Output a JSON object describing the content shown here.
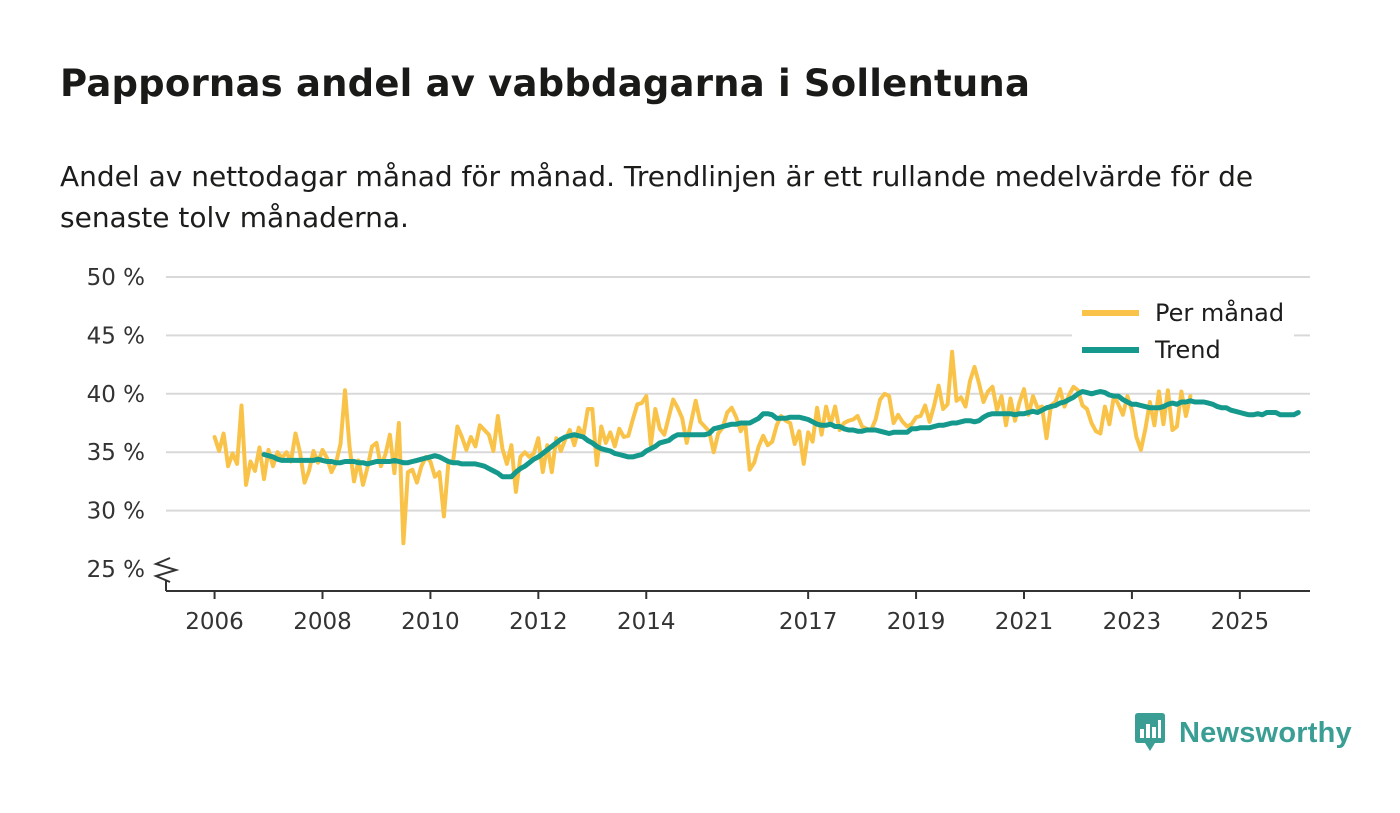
{
  "title": "Pappornas andel av vabbdagarna i Sollentuna",
  "subtitle": "Andel av nettodagar månad för månad. Trendlinjen är ett rullande medelvärde för de senaste tolv månaderna.",
  "brand": {
    "name": "Newsworthy",
    "logo_icon": "bar-chart-speech-bubble-icon"
  },
  "colors": {
    "monthly": "#f9c34a",
    "trend": "#14998c",
    "grid": "#d9d9d9",
    "axis": "#333333"
  },
  "chart_data": {
    "type": "line",
    "title": "Pappornas andel av vabbdagarna i Sollentuna",
    "xlabel": "",
    "ylabel": "",
    "ylim": [
      25,
      50
    ],
    "y_ticks": [
      25,
      30,
      35,
      40,
      45,
      50
    ],
    "y_tick_labels": [
      "25 %",
      "30 %",
      "35 %",
      "40 %",
      "45 %",
      "50 %"
    ],
    "x_ticks": [
      2006,
      2008,
      2010,
      2012,
      2014,
      2017,
      2019,
      2021,
      2023,
      2025
    ],
    "x_tick_labels": [
      "2006",
      "2008",
      "2010",
      "2012",
      "2014",
      "2017",
      "2019",
      "2021",
      "2023",
      "2025"
    ],
    "x_range": [
      2005.1,
      2026.3
    ],
    "grid": true,
    "axis_break": true,
    "legend_position": "top-right",
    "series": [
      {
        "name": "Per månad",
        "key": "monthly",
        "x_start": 2006.0,
        "x_step": 0.0833333,
        "values": [
          36.3,
          35.1,
          36.6,
          33.8,
          34.9,
          34.0,
          39.0,
          32.2,
          34.2,
          33.4,
          35.4,
          32.7,
          35.2,
          33.8,
          35.0,
          34.5,
          35.0,
          34.2,
          36.6,
          35.0,
          32.4,
          33.4,
          35.1,
          34.1,
          35.2,
          34.5,
          33.3,
          34.1,
          35.7,
          40.3,
          35.5,
          32.5,
          34.3,
          32.2,
          33.7,
          35.5,
          35.8,
          33.8,
          34.8,
          36.5,
          33.2,
          37.5,
          27.2,
          33.3,
          33.5,
          32.4,
          33.8,
          34.6,
          34.2,
          32.9,
          33.3,
          29.5,
          34.1,
          34.1,
          37.2,
          36.3,
          35.2,
          36.3,
          35.5,
          37.3,
          36.9,
          36.5,
          35.1,
          38.1,
          35.3,
          34.0,
          35.6,
          31.6,
          34.6,
          35.0,
          34.6,
          34.9,
          36.2,
          33.3,
          35.6,
          33.3,
          36.2,
          35.1,
          36.1,
          36.9,
          35.6,
          37.1,
          36.4,
          38.7,
          38.7,
          33.9,
          37.2,
          35.8,
          36.7,
          35.5,
          37.0,
          36.3,
          36.4,
          37.8,
          39.1,
          39.2,
          39.8,
          35.6,
          38.7,
          37.0,
          36.5,
          38.0,
          39.5,
          38.8,
          37.9,
          35.8,
          37.6,
          39.4,
          37.6,
          37.2,
          36.8,
          35.0,
          36.6,
          37.1,
          38.4,
          38.8,
          38.0,
          36.8,
          37.5,
          33.5,
          34.1,
          35.5,
          36.4,
          35.6,
          35.9,
          37.3,
          38.1,
          37.7,
          37.5,
          35.7,
          36.8,
          34.0,
          36.7,
          35.9,
          38.8,
          36.5,
          38.9,
          37.4,
          38.9,
          36.9,
          37.5,
          37.7,
          37.8,
          38.1,
          37.2,
          37.0,
          36.9,
          37.8,
          39.5,
          40.0,
          39.8,
          37.5,
          38.2,
          37.6,
          37.2,
          37.4,
          38.0,
          38.1,
          39.0,
          37.6,
          39.0,
          40.7,
          38.7,
          39.1,
          43.6,
          39.4,
          39.7,
          38.9,
          41.1,
          42.3,
          40.9,
          39.3,
          40.2,
          40.6,
          38.6,
          39.8,
          37.3,
          39.6,
          37.7,
          39.3,
          40.4,
          38.2,
          39.8,
          38.8,
          38.9,
          36.2,
          39.0,
          39.3,
          40.4,
          38.9,
          39.9,
          40.6,
          40.3,
          39.0,
          38.7,
          37.5,
          36.8,
          36.6,
          38.9,
          37.4,
          39.8,
          39.1,
          38.2,
          39.8,
          38.6,
          36.3,
          35.2,
          37.0,
          39.3,
          37.3,
          40.2,
          37.4,
          40.3,
          36.9,
          37.2,
          40.2,
          38.1,
          39.8
        ]
      },
      {
        "name": "Trend",
        "key": "trend",
        "x_start": 2006.9167,
        "x_step": 0.0833333,
        "values": [
          34.8,
          34.7,
          34.6,
          34.4,
          34.3,
          34.3,
          34.3,
          34.3,
          34.3,
          34.3,
          34.3,
          34.3,
          34.4,
          34.3,
          34.2,
          34.2,
          34.1,
          34.1,
          34.2,
          34.2,
          34.2,
          34.1,
          34.1,
          34.0,
          34.1,
          34.2,
          34.2,
          34.2,
          34.2,
          34.3,
          34.2,
          34.1,
          34.1,
          34.2,
          34.3,
          34.4,
          34.5,
          34.6,
          34.7,
          34.6,
          34.4,
          34.2,
          34.1,
          34.1,
          34.0,
          34.0,
          34.0,
          34.0,
          33.9,
          33.8,
          33.6,
          33.4,
          33.2,
          32.9,
          32.9,
          32.9,
          33.3,
          33.6,
          33.8,
          34.1,
          34.4,
          34.6,
          34.9,
          35.2,
          35.5,
          35.8,
          36.1,
          36.3,
          36.4,
          36.5,
          36.4,
          36.3,
          36.0,
          35.8,
          35.5,
          35.3,
          35.2,
          35.1,
          34.9,
          34.8,
          34.7,
          34.6,
          34.6,
          34.7,
          34.8,
          35.1,
          35.3,
          35.5,
          35.8,
          35.9,
          36.0,
          36.3,
          36.5,
          36.5,
          36.5,
          36.5,
          36.5,
          36.5,
          36.5,
          36.6,
          37.0,
          37.1,
          37.2,
          37.3,
          37.4,
          37.4,
          37.5,
          37.5,
          37.5,
          37.7,
          37.9,
          38.3,
          38.3,
          38.2,
          37.9,
          37.9,
          37.9,
          38.0,
          38.0,
          38.0,
          37.9,
          37.8,
          37.6,
          37.4,
          37.3,
          37.3,
          37.4,
          37.2,
          37.2,
          37.0,
          36.9,
          36.9,
          36.8,
          36.8,
          36.9,
          36.9,
          36.9,
          36.8,
          36.7,
          36.6,
          36.7,
          36.7,
          36.7,
          36.7,
          37.0,
          37.0,
          37.1,
          37.1,
          37.1,
          37.2,
          37.3,
          37.3,
          37.4,
          37.5,
          37.5,
          37.6,
          37.7,
          37.7,
          37.6,
          37.7,
          38.0,
          38.2,
          38.3,
          38.3,
          38.3,
          38.3,
          38.3,
          38.2,
          38.3,
          38.3,
          38.4,
          38.5,
          38.4,
          38.6,
          38.8,
          38.9,
          39.0,
          39.2,
          39.3,
          39.5,
          39.7,
          40.0,
          40.2,
          40.1,
          40.0,
          40.1,
          40.2,
          40.1,
          39.9,
          39.8,
          39.8,
          39.5,
          39.3,
          39.1,
          39.1,
          39.0,
          38.9,
          38.8,
          38.8,
          38.8,
          38.9,
          39.1,
          39.2,
          39.1,
          39.3,
          39.3,
          39.4,
          39.3,
          39.3,
          39.3,
          39.2,
          39.1,
          38.9,
          38.8,
          38.8,
          38.6,
          38.5,
          38.4,
          38.3,
          38.2,
          38.2,
          38.3,
          38.2,
          38.4,
          38.4,
          38.4,
          38.2,
          38.2,
          38.2,
          38.2,
          38.4
        ]
      }
    ]
  }
}
